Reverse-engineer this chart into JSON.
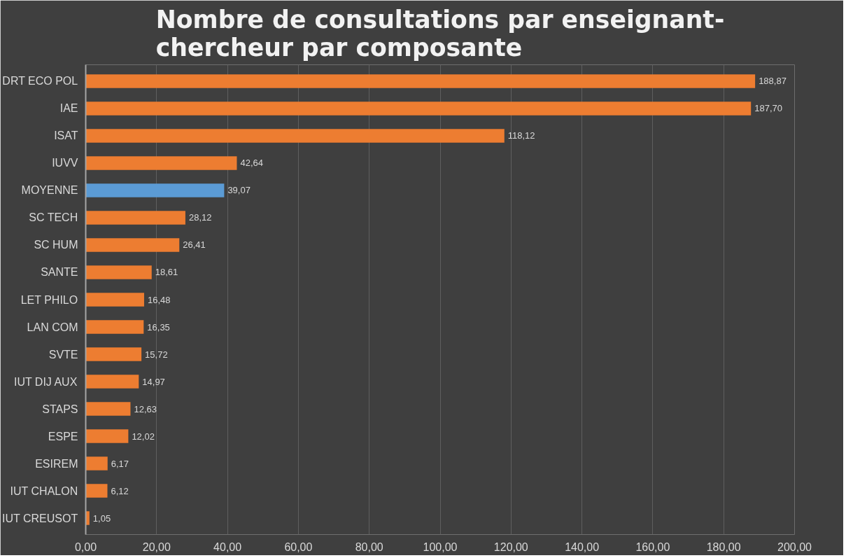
{
  "chart_data": {
    "type": "bar",
    "orientation": "horizontal",
    "title": "Nombre de consultations par enseignant-chercheur par composante",
    "categories": [
      "DRT ECO POL",
      "IAE",
      "ISAT",
      "IUVV",
      "MOYENNE",
      "SC TECH",
      "SC HUM",
      "SANTE",
      "LET PHILO",
      "LAN COM",
      "SVTE",
      "IUT DIJ AUX",
      "STAPS",
      "ESPE",
      "ESIREM",
      "IUT CHALON",
      "IUT CREUSOT"
    ],
    "values": [
      188.87,
      187.7,
      118.12,
      42.64,
      39.07,
      28.12,
      26.41,
      18.61,
      16.48,
      16.35,
      15.72,
      14.97,
      12.63,
      12.02,
      6.17,
      6.12,
      1.05
    ],
    "colors": [
      "#ed7d31",
      "#ed7d31",
      "#ed7d31",
      "#ed7d31",
      "#5b9bd5",
      "#ed7d31",
      "#ed7d31",
      "#ed7d31",
      "#ed7d31",
      "#ed7d31",
      "#ed7d31",
      "#ed7d31",
      "#ed7d31",
      "#ed7d31",
      "#ed7d31",
      "#ed7d31",
      "#ed7d31"
    ],
    "value_labels": [
      "188,87",
      "187,70",
      "118,12",
      "42,64",
      "39,07",
      "28,12",
      "26,41",
      "18,61",
      "16,48",
      "16,35",
      "15,72",
      "14,97",
      "12,63",
      "12,02",
      "6,17",
      "6,12",
      "1,05"
    ],
    "xlim": [
      0,
      200
    ],
    "xticks": [
      {
        "value": 0,
        "label": "0,00"
      },
      {
        "value": 20,
        "label": "20,00"
      },
      {
        "value": 40,
        "label": "40,00"
      },
      {
        "value": 60,
        "label": "60,00"
      },
      {
        "value": 80,
        "label": "80,00"
      },
      {
        "value": 100,
        "label": "100,00"
      },
      {
        "value": 120,
        "label": "120,00"
      },
      {
        "value": 140,
        "label": "140,00"
      },
      {
        "value": 160,
        "label": "160,00"
      },
      {
        "value": 180,
        "label": "180,00"
      },
      {
        "value": 200,
        "label": "200,00"
      }
    ],
    "grid": "x"
  }
}
